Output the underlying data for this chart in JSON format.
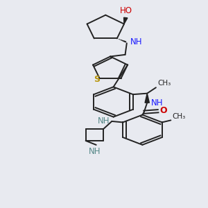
{
  "background_color": "#e8eaf0",
  "bond_color": "#222222",
  "bond_width": 1.4,
  "figsize": [
    3.0,
    3.0
  ],
  "dpi": 100,
  "xlim": [
    0.2,
    0.85
  ],
  "ylim": [
    0.02,
    1.0
  ]
}
